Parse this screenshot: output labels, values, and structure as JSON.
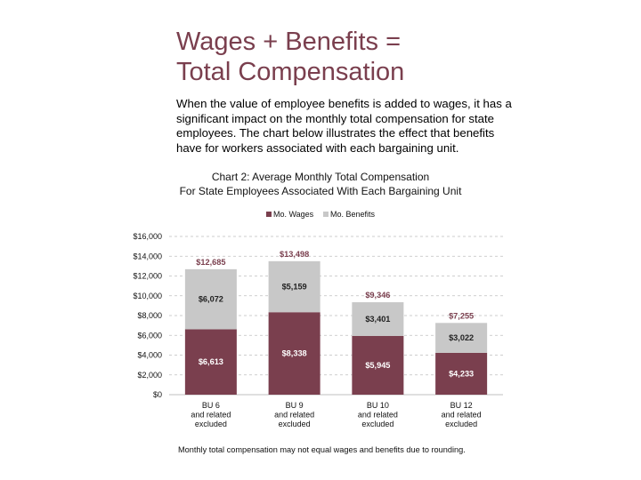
{
  "title_line1": "Wages + Benefits =",
  "title_line2": "Total Compensation",
  "intro": "When the value of employee benefits is added to wages, it has a significant impact on the monthly total compensation for state employees.  The chart below illustrates the effect that benefits have for workers associated with each bargaining unit.",
  "chart_title_line1": "Chart 2: Average Monthly Total Compensation",
  "chart_title_line2": "For State Employees Associated With Each Bargaining Unit",
  "footnote": "Monthly total compensation may not equal wages and benefits due to rounding.",
  "colors": {
    "wages": "#7a3f4e",
    "benefits": "#c8c8c8",
    "total_label": "#7a3f4e",
    "title": "#7a3f4e"
  },
  "chart_data": {
    "type": "bar",
    "stacked": true,
    "categories": [
      [
        "BU 6",
        "and related",
        "excluded"
      ],
      [
        "BU 9",
        "and related",
        "excluded"
      ],
      [
        "BU 10",
        "and related",
        "excluded"
      ],
      [
        "BU 12",
        "and related",
        "excluded"
      ]
    ],
    "series": [
      {
        "name": "Mo. Wages",
        "values": [
          6613,
          8338,
          5945,
          4233
        ],
        "labels": [
          "$6,613",
          "$8,338",
          "$5,945",
          "$4,233"
        ]
      },
      {
        "name": "Mo. Benefits",
        "values": [
          6072,
          5159,
          3401,
          3022
        ],
        "labels": [
          "$6,072",
          "$5,159",
          "$3,401",
          "$3,022"
        ]
      }
    ],
    "totals": [
      12685,
      13498,
      9346,
      7255
    ],
    "total_labels": [
      "$12,685",
      "$13,498",
      "$9,346",
      "$7,255"
    ],
    "ylim": [
      0,
      16000
    ],
    "yticks": [
      0,
      2000,
      4000,
      6000,
      8000,
      10000,
      12000,
      14000,
      16000
    ],
    "ytick_labels": [
      "$0",
      "$2,000",
      "$4,000",
      "$6,000",
      "$8,000",
      "$10,000",
      "$12,000",
      "$14,000",
      "$16,000"
    ],
    "grid": true,
    "legend_position": "top-center"
  }
}
